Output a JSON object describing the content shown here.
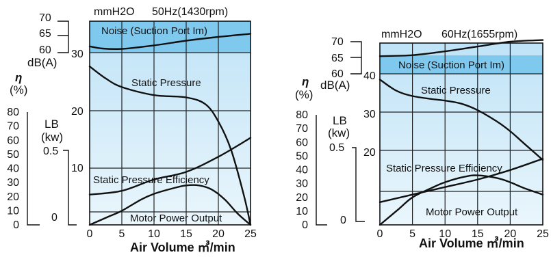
{
  "chart_data": [
    {
      "type": "line",
      "header_unit": "mmH2O",
      "header_freq": "50Hz(1430rpm)",
      "noise_band_label": "Noise (Suction Port Im)",
      "xlabel": "Air Volume ㎥/min",
      "x_ticks": [
        "0",
        "5",
        "10",
        "15",
        "20",
        "25"
      ],
      "xlim": [
        0,
        25
      ],
      "pressure_ylim": [
        0,
        30
      ],
      "pressure_ticks": [
        "10",
        "20",
        "30"
      ],
      "noise_ticks": [
        "70",
        "65",
        "60"
      ],
      "noise_unit": "dB(A)",
      "eta_label": "η",
      "eta_unit": "(%)",
      "eta_ticks": [
        "80",
        "70",
        "60",
        "50",
        "40",
        "30",
        "20",
        "10",
        "0"
      ],
      "lb_label": "LB",
      "lb_unit": "(kw)",
      "lb_ticks": [
        "0.5",
        "0"
      ],
      "series": [
        {
          "name": "Noise (Suction Port Im)",
          "x": [
            0,
            2,
            5,
            10,
            15,
            20,
            25
          ],
          "y": [
            62,
            61.3,
            61.2,
            62.3,
            63.8,
            65,
            66
          ]
        },
        {
          "name": "Static Pressure",
          "x": [
            0,
            2.5,
            5,
            10,
            15,
            18,
            20,
            22,
            24,
            25
          ],
          "y": [
            27.6,
            25.5,
            24,
            22.6,
            22.2,
            21,
            18,
            13,
            5,
            0
          ]
        },
        {
          "name": "Static Pressure Efficiency",
          "x": [
            0,
            3,
            5,
            8,
            10,
            13,
            15,
            17,
            19,
            21,
            23,
            25
          ],
          "y": [
            0,
            6,
            10,
            18,
            22,
            26,
            28,
            28,
            25,
            18,
            8,
            0
          ]
        },
        {
          "name": "Motor Power Output",
          "x": [
            0,
            5,
            10,
            15,
            20,
            25
          ],
          "y": [
            8,
            9,
            12,
            14,
            18,
            23
          ]
        }
      ]
    },
    {
      "type": "line",
      "header_unit": "mmH2O",
      "header_freq": "60Hz(1655rpm)",
      "noise_band_label": "Noise (Suction Port Im)",
      "xlabel": "Air Volume ㎥/min",
      "x_ticks": [
        "0",
        "5",
        "10",
        "15",
        "20",
        "25"
      ],
      "xlim": [
        0,
        25
      ],
      "pressure_ylim": [
        10,
        40
      ],
      "pressure_ticks": [
        "20",
        "30",
        "40"
      ],
      "noise_ticks": [
        "70",
        "65",
        "60"
      ],
      "noise_unit": "dB(A)",
      "eta_label": "η",
      "eta_unit": "(%)",
      "eta_ticks": [
        "80",
        "70",
        "60",
        "50",
        "40",
        "30",
        "20",
        "10",
        "0"
      ],
      "lb_label": "LB",
      "lb_unit": "(kw)",
      "lb_ticks": [
        "0.5",
        "0"
      ],
      "series": [
        {
          "name": "Noise (Suction Port Im)",
          "x": [
            0,
            5,
            10,
            15,
            20,
            25
          ],
          "y": [
            65.5,
            65.8,
            67,
            68.5,
            70,
            70.5
          ]
        },
        {
          "name": "Static Pressure",
          "x": [
            0,
            2.5,
            5,
            8,
            10,
            12.5,
            15,
            18,
            20,
            22,
            25
          ],
          "y": [
            38.5,
            35.6,
            34.2,
            33.4,
            33,
            32.2,
            30.5,
            27.5,
            25,
            22,
            17.5
          ]
        },
        {
          "name": "Static Pressure Efficiency",
          "x": [
            0,
            3,
            5,
            8,
            10,
            13,
            15,
            18,
            20,
            22,
            25
          ],
          "y": [
            0,
            12,
            20,
            27,
            31,
            35,
            36,
            34,
            31,
            27,
            22
          ]
        },
        {
          "name": "Motor Power Output",
          "x": [
            0,
            5,
            10,
            15,
            20,
            25
          ],
          "y": [
            12,
            16,
            20,
            24,
            29,
            35
          ]
        }
      ]
    }
  ]
}
